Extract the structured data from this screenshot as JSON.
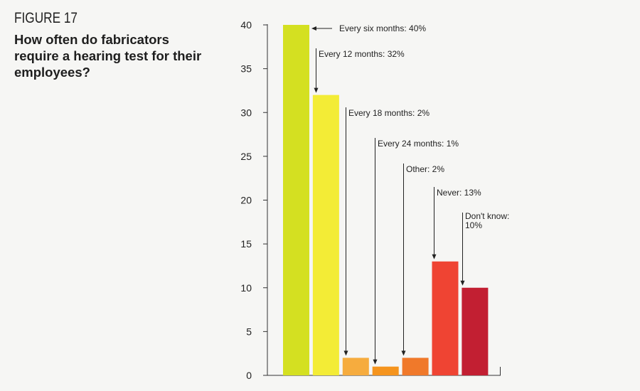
{
  "figure": {
    "label": "FIGURE 17",
    "title": "How often do fabricators require a hearing test for their employees?"
  },
  "chart_data": {
    "type": "bar",
    "title": "How often do fabricators require a hearing test for their employees?",
    "xlabel": "",
    "ylabel": "",
    "ylim": [
      0,
      40
    ],
    "yticks": [
      0,
      5,
      10,
      15,
      20,
      25,
      30,
      35,
      40
    ],
    "grid": false,
    "legend": "none",
    "bars": [
      {
        "category": "Every six months",
        "value": 40,
        "label_lines": [
          "Every six months: 40%"
        ],
        "color": "#d4e021"
      },
      {
        "category": "Every 12 months",
        "value": 32,
        "label_lines": [
          "Every 12 months: 32%"
        ],
        "color": "#f3ec36"
      },
      {
        "category": "Every 18 months",
        "value": 2,
        "label_lines": [
          "Every 18 months: 2%"
        ],
        "color": "#f6ac3e"
      },
      {
        "category": "Every 24 months",
        "value": 1,
        "label_lines": [
          "Every 24 months: 1%"
        ],
        "color": "#f5941d"
      },
      {
        "category": "Other",
        "value": 2,
        "label_lines": [
          "Other: 2%"
        ],
        "color": "#f0792a"
      },
      {
        "category": "Never",
        "value": 13,
        "label_lines": [
          "Never: 13%"
        ],
        "color": "#ef4433"
      },
      {
        "category": "Don't know",
        "value": 10,
        "label_lines": [
          "Don't know:",
          "10%"
        ],
        "color": "#c21f32"
      }
    ]
  }
}
